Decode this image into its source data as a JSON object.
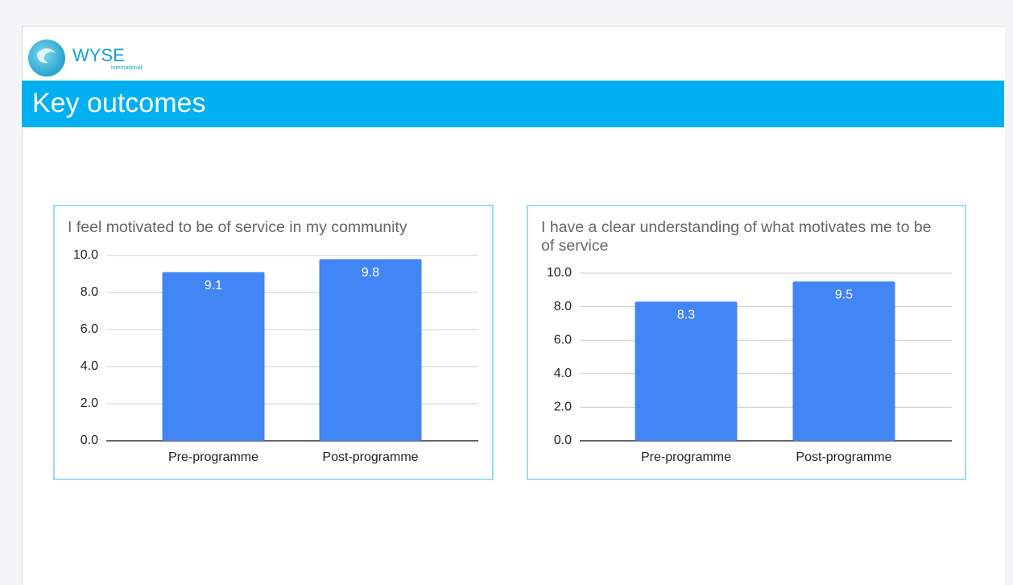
{
  "header": {
    "logo": "WYSE",
    "logo_sub": "international",
    "title": "Key outcomes"
  },
  "chart_data": [
    {
      "type": "bar",
      "title": "I feel motivated to be of service in my community",
      "categories": [
        "Pre-programme",
        "Post-programme"
      ],
      "values": [
        9.1,
        9.8
      ],
      "color": "#4285f4",
      "ylim": [
        0,
        10
      ],
      "yticks": [
        {
          "value": 0,
          "label": "0.0"
        },
        {
          "value": 2,
          "label": "2.0"
        },
        {
          "value": 4,
          "label": "4.0"
        },
        {
          "value": 6,
          "label": "6.0"
        },
        {
          "value": 8,
          "label": "8.0"
        },
        {
          "value": 10,
          "label": "10.0"
        }
      ],
      "grid": true
    },
    {
      "type": "bar",
      "title": "I have a clear understanding of what motivates me to be of service",
      "categories": [
        "Pre-programme",
        "Post-programme"
      ],
      "values": [
        8.3,
        9.5
      ],
      "color": "#4285f4",
      "ylim": [
        0,
        10
      ],
      "yticks": [
        {
          "value": 0,
          "label": "0.0"
        },
        {
          "value": 2,
          "label": "2.0"
        },
        {
          "value": 4,
          "label": "4.0"
        },
        {
          "value": 6,
          "label": "6.0"
        },
        {
          "value": 8,
          "label": "8.0"
        },
        {
          "value": 10,
          "label": "10.0"
        }
      ],
      "grid": true
    }
  ]
}
